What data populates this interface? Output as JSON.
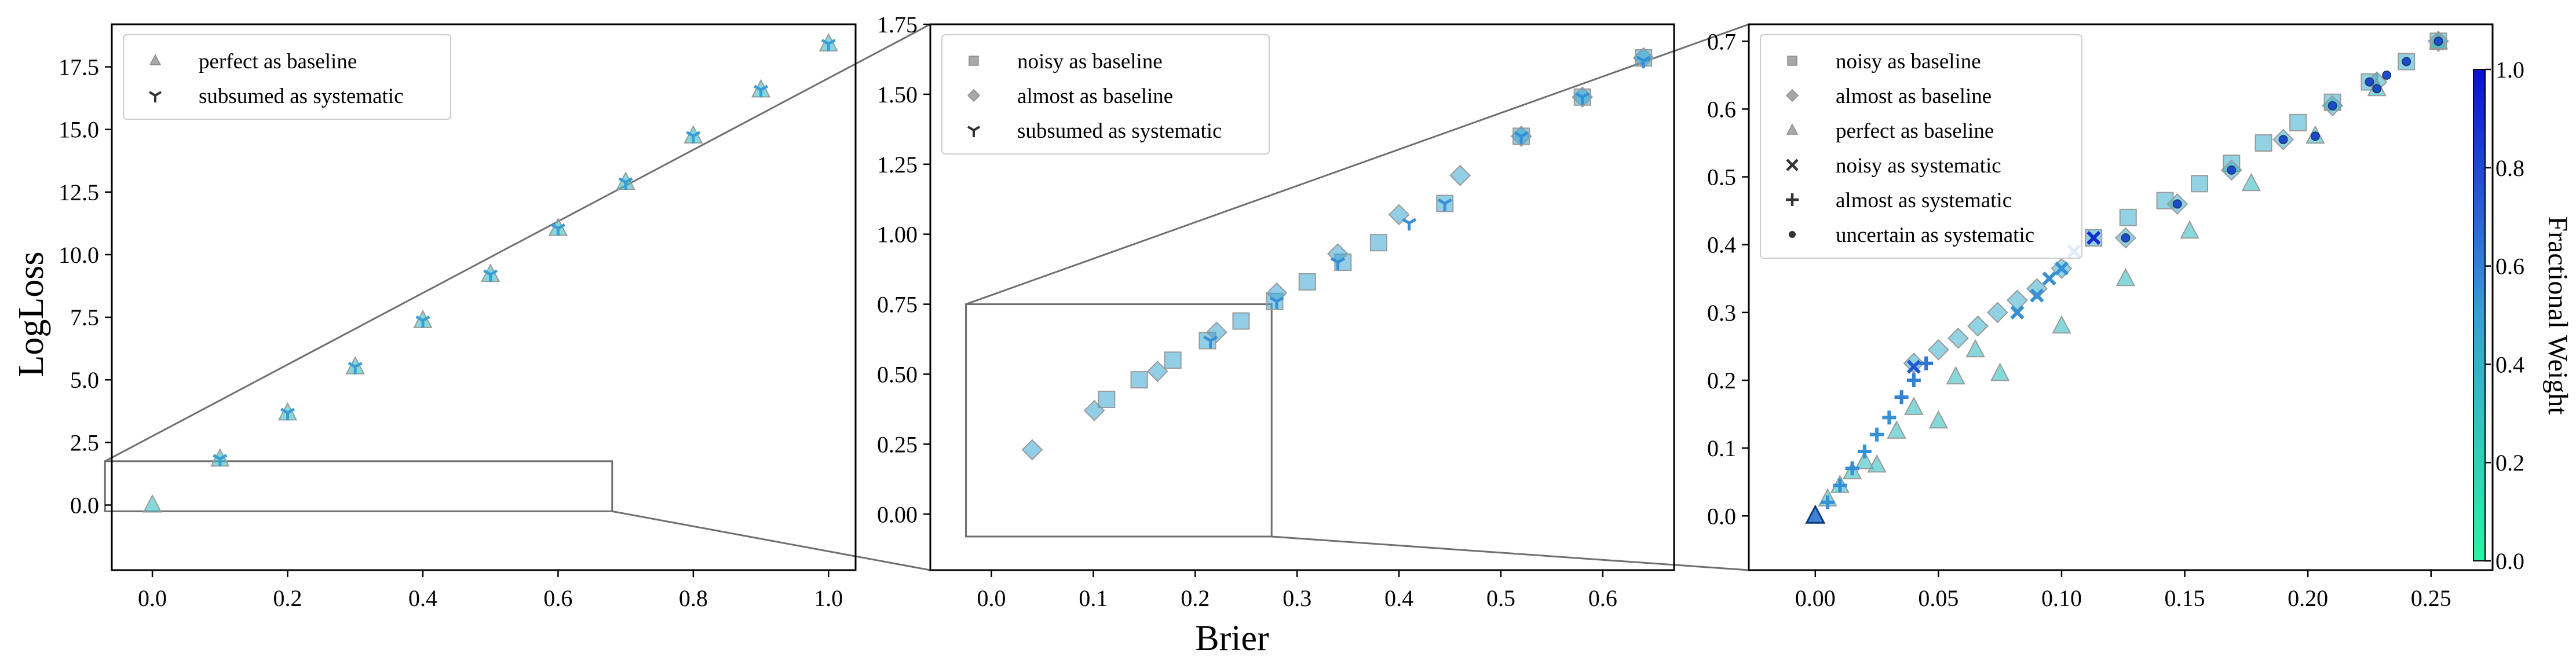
{
  "colors": {
    "cmap_low": "#2ef2a4",
    "cmap_mid": "#3a9ed6",
    "cmap_high": "#0b12cc",
    "baseline_marker": "#9a9a9a",
    "axis": "#000000",
    "zoom_line": "#6f6f6f"
  },
  "chart_data": [
    {
      "type": "scatter",
      "xlabel": "",
      "ylabel": "LogLoss",
      "xlim": [
        -0.06,
        1.04
      ],
      "ylim": [
        -2.6,
        19.2
      ],
      "xticks": [
        0.0,
        0.2,
        0.4,
        0.6,
        0.8,
        1.0
      ],
      "xtick_labels": [
        "0.0",
        "0.2",
        "0.4",
        "0.6",
        "0.8",
        "1.0"
      ],
      "yticks": [
        0.0,
        2.5,
        5.0,
        7.5,
        10.0,
        12.5,
        15.0,
        17.5
      ],
      "ytick_labels": [
        "0.0",
        "2.5",
        "5.0",
        "7.5",
        "10.0",
        "12.5",
        "15.0",
        "17.5"
      ],
      "legend": {
        "placement": "upper-left",
        "entries": [
          {
            "label": "perfect as baseline",
            "marker": "triangle"
          },
          {
            "label": "subsumed as systematic",
            "marker": "tri-down"
          }
        ]
      },
      "zoom_rect": {
        "x": [
          -0.07,
          0.68
        ],
        "y": [
          -0.25,
          1.75
        ]
      },
      "series": [
        {
          "name": "perfect as baseline",
          "marker": "triangle",
          "role": "baseline",
          "points": [
            [
              0.0,
              0.0
            ],
            [
              0.1,
              1.84
            ],
            [
              0.2,
              3.68
            ],
            [
              0.3,
              5.52
            ],
            [
              0.4,
              7.37
            ],
            [
              0.5,
              9.21
            ],
            [
              0.6,
              11.05
            ],
            [
              0.7,
              12.89
            ],
            [
              0.8,
              14.74
            ],
            [
              0.9,
              16.58
            ],
            [
              1.0,
              18.42
            ]
          ],
          "weights": [
            0.3,
            0.3,
            0.3,
            0.3,
            0.3,
            0.3,
            0.3,
            0.3,
            0.3,
            0.3,
            0.3
          ]
        },
        {
          "name": "subsumed as systematic",
          "marker": "tri-down",
          "role": "systematic",
          "points": [
            [
              0.1,
              1.84
            ],
            [
              0.2,
              3.68
            ],
            [
              0.3,
              5.52
            ],
            [
              0.4,
              7.37
            ],
            [
              0.5,
              9.21
            ],
            [
              0.6,
              11.05
            ],
            [
              0.7,
              12.89
            ],
            [
              0.8,
              14.74
            ],
            [
              0.9,
              16.58
            ],
            [
              1.0,
              18.42
            ]
          ],
          "weights": [
            0.5,
            0.5,
            0.5,
            0.5,
            0.5,
            0.5,
            0.5,
            0.5,
            0.5,
            0.5
          ]
        }
      ]
    },
    {
      "type": "scatter",
      "xlabel": "Brier",
      "ylabel": "",
      "xlim": [
        -0.06,
        0.67
      ],
      "ylim": [
        -0.2,
        1.75
      ],
      "xticks": [
        0.0,
        0.1,
        0.2,
        0.3,
        0.4,
        0.5,
        0.6
      ],
      "xtick_labels": [
        "0.0",
        "0.1",
        "0.2",
        "0.3",
        "0.4",
        "0.5",
        "0.6"
      ],
      "yticks": [
        0.0,
        0.25,
        0.5,
        0.75,
        1.0,
        1.25,
        1.5,
        1.75
      ],
      "ytick_labels": [
        "0.00",
        "0.25",
        "0.50",
        "0.75",
        "1.00",
        "1.25",
        "1.50",
        "1.75"
      ],
      "legend": {
        "placement": "upper-left",
        "entries": [
          {
            "label": "noisy as baseline",
            "marker": "square"
          },
          {
            "label": "almost as baseline",
            "marker": "diamond"
          },
          {
            "label": "subsumed as systematic",
            "marker": "tri-down"
          }
        ]
      },
      "zoom_rect": {
        "x": [
          -0.025,
          0.275
        ],
        "y": [
          -0.08,
          0.75
        ]
      },
      "series": [
        {
          "name": "noisy as baseline",
          "marker": "square",
          "role": "baseline",
          "points": [
            [
              0.113,
              0.41
            ],
            [
              0.145,
              0.48
            ],
            [
              0.178,
              0.55
            ],
            [
              0.212,
              0.62
            ],
            [
              0.245,
              0.69
            ],
            [
              0.278,
              0.76
            ],
            [
              0.31,
              0.83
            ],
            [
              0.345,
              0.9
            ],
            [
              0.38,
              0.97
            ],
            [
              0.445,
              1.11
            ],
            [
              0.52,
              1.35
            ],
            [
              0.58,
              1.49
            ],
            [
              0.64,
              1.63
            ]
          ],
          "weights": [
            0.45,
            0.45,
            0.45,
            0.45,
            0.45,
            0.45,
            0.45,
            0.45,
            0.45,
            0.45,
            0.45,
            0.45,
            0.45
          ]
        },
        {
          "name": "almost as baseline",
          "marker": "diamond",
          "role": "baseline",
          "points": [
            [
              0.04,
              0.23
            ],
            [
              0.101,
              0.37
            ],
            [
              0.163,
              0.51
            ],
            [
              0.221,
              0.65
            ],
            [
              0.28,
              0.79
            ],
            [
              0.34,
              0.93
            ],
            [
              0.4,
              1.07
            ],
            [
              0.46,
              1.21
            ],
            [
              0.52,
              1.35
            ],
            [
              0.58,
              1.49
            ],
            [
              0.64,
              1.63
            ]
          ],
          "weights": [
            0.45,
            0.45,
            0.45,
            0.45,
            0.45,
            0.45,
            0.45,
            0.45,
            0.45,
            0.45,
            0.45
          ]
        },
        {
          "name": "subsumed as systematic",
          "marker": "tri-down",
          "role": "systematic",
          "points": [
            [
              0.215,
              0.62
            ],
            [
              0.28,
              0.76
            ],
            [
              0.34,
              0.9
            ],
            [
              0.41,
              1.04
            ],
            [
              0.445,
              1.11
            ],
            [
              0.52,
              1.35
            ],
            [
              0.58,
              1.49
            ],
            [
              0.64,
              1.62
            ]
          ],
          "weights": [
            0.55,
            0.55,
            0.55,
            0.55,
            0.55,
            0.55,
            0.55,
            0.55
          ]
        }
      ]
    },
    {
      "type": "scatter",
      "xlabel": "",
      "ylabel": "",
      "xlim": [
        -0.027,
        0.275
      ],
      "ylim": [
        -0.08,
        0.725
      ],
      "xticks": [
        0.0,
        0.05,
        0.1,
        0.15,
        0.2,
        0.25
      ],
      "xtick_labels": [
        "0.00",
        "0.05",
        "0.10",
        "0.15",
        "0.20",
        "0.25"
      ],
      "yticks": [
        0.0,
        0.1,
        0.2,
        0.3,
        0.4,
        0.5,
        0.6,
        0.7
      ],
      "ytick_labels": [
        "0.0",
        "0.1",
        "0.2",
        "0.3",
        "0.4",
        "0.5",
        "0.6",
        "0.7"
      ],
      "legend": {
        "placement": "upper-left",
        "entries": [
          {
            "label": "noisy as baseline",
            "marker": "square"
          },
          {
            "label": "almost as baseline",
            "marker": "diamond"
          },
          {
            "label": "perfect as baseline",
            "marker": "triangle"
          },
          {
            "label": "noisy as systematic",
            "marker": "x"
          },
          {
            "label": "almost as systematic",
            "marker": "plus"
          },
          {
            "label": "uncertain as systematic",
            "marker": "dot"
          }
        ]
      },
      "colorbar": {
        "label": "Fractional Weight",
        "range": [
          0.0,
          1.0
        ],
        "ticks": [
          0.0,
          0.2,
          0.4,
          0.6,
          0.8,
          1.0
        ],
        "tick_labels": [
          "0.0",
          "0.2",
          "0.4",
          "0.6",
          "0.8",
          "1.0"
        ]
      },
      "series": [
        {
          "name": "noisy as baseline",
          "marker": "square",
          "role": "baseline",
          "points": [
            [
              0.113,
              0.41
            ],
            [
              0.127,
              0.44
            ],
            [
              0.142,
              0.465
            ],
            [
              0.156,
              0.49
            ],
            [
              0.169,
              0.52
            ],
            [
              0.182,
              0.55
            ],
            [
              0.196,
              0.58
            ],
            [
              0.21,
              0.61
            ],
            [
              0.225,
              0.64
            ],
            [
              0.24,
              0.67
            ],
            [
              0.253,
              0.7
            ]
          ],
          "weights": [
            0.4,
            0.4,
            0.4,
            0.4,
            0.4,
            0.4,
            0.4,
            0.4,
            0.4,
            0.4,
            0.4
          ]
        },
        {
          "name": "almost as baseline",
          "marker": "diamond",
          "role": "baseline",
          "points": [
            [
              0.04,
              0.225
            ],
            [
              0.05,
              0.245
            ],
            [
              0.058,
              0.262
            ],
            [
              0.066,
              0.28
            ],
            [
              0.074,
              0.3
            ],
            [
              0.082,
              0.318
            ],
            [
              0.09,
              0.335
            ],
            [
              0.1,
              0.365
            ],
            [
              0.126,
              0.41
            ],
            [
              0.147,
              0.46
            ],
            [
              0.169,
              0.51
            ],
            [
              0.19,
              0.555
            ],
            [
              0.21,
              0.605
            ],
            [
              0.228,
              0.64
            ],
            [
              0.253,
              0.7
            ]
          ],
          "weights": [
            0.4,
            0.4,
            0.4,
            0.4,
            0.4,
            0.4,
            0.4,
            0.4,
            0.4,
            0.4,
            0.4,
            0.4,
            0.4,
            0.4,
            0.4
          ]
        },
        {
          "name": "perfect as baseline",
          "marker": "triangle",
          "role": "baseline",
          "points": [
            [
              0.0,
              0.0
            ],
            [
              0.005,
              0.025
            ],
            [
              0.01,
              0.045
            ],
            [
              0.015,
              0.065
            ],
            [
              0.02,
              0.08
            ],
            [
              0.025,
              0.075
            ],
            [
              0.033,
              0.125
            ],
            [
              0.04,
              0.16
            ],
            [
              0.05,
              0.14
            ],
            [
              0.057,
              0.205
            ],
            [
              0.065,
              0.245
            ],
            [
              0.075,
              0.21
            ],
            [
              0.1,
              0.28
            ],
            [
              0.126,
              0.35
            ],
            [
              0.152,
              0.42
            ],
            [
              0.177,
              0.49
            ],
            [
              0.203,
              0.56
            ],
            [
              0.228,
              0.63
            ],
            [
              0.253,
              0.7
            ]
          ],
          "weights": [
            0.65,
            0.3,
            0.3,
            0.3,
            0.3,
            0.3,
            0.3,
            0.3,
            0.3,
            0.3,
            0.3,
            0.3,
            0.3,
            0.3,
            0.3,
            0.3,
            0.3,
            0.3,
            0.3
          ]
        },
        {
          "name": "noisy as systematic",
          "marker": "x",
          "role": "systematic",
          "points": [
            [
              0.04,
              0.22
            ],
            [
              0.082,
              0.3
            ],
            [
              0.09,
              0.325
            ],
            [
              0.095,
              0.35
            ],
            [
              0.1,
              0.365
            ],
            [
              0.105,
              0.39
            ],
            [
              0.113,
              0.41
            ]
          ],
          "weights": [
            0.75,
            0.55,
            0.55,
            0.55,
            0.55,
            0.6,
            0.9
          ]
        },
        {
          "name": "almost as systematic",
          "marker": "plus",
          "role": "systematic",
          "points": [
            [
              0.005,
              0.02
            ],
            [
              0.01,
              0.045
            ],
            [
              0.015,
              0.07
            ],
            [
              0.02,
              0.095
            ],
            [
              0.025,
              0.12
            ],
            [
              0.03,
              0.145
            ],
            [
              0.035,
              0.175
            ],
            [
              0.04,
              0.2
            ],
            [
              0.045,
              0.225
            ]
          ],
          "weights": [
            0.55,
            0.55,
            0.55,
            0.55,
            0.55,
            0.55,
            0.6,
            0.6,
            0.65
          ]
        },
        {
          "name": "uncertain as systematic",
          "marker": "dot",
          "role": "systematic",
          "points": [
            [
              0.126,
              0.41
            ],
            [
              0.147,
              0.46
            ],
            [
              0.169,
              0.51
            ],
            [
              0.19,
              0.555
            ],
            [
              0.203,
              0.56
            ],
            [
              0.21,
              0.605
            ],
            [
              0.225,
              0.64
            ],
            [
              0.228,
              0.63
            ],
            [
              0.232,
              0.65
            ],
            [
              0.24,
              0.67
            ],
            [
              0.253,
              0.7
            ]
          ],
          "weights": [
            0.8,
            0.8,
            0.8,
            0.8,
            0.8,
            0.8,
            0.8,
            0.8,
            0.8,
            0.8,
            0.8
          ]
        }
      ]
    }
  ]
}
